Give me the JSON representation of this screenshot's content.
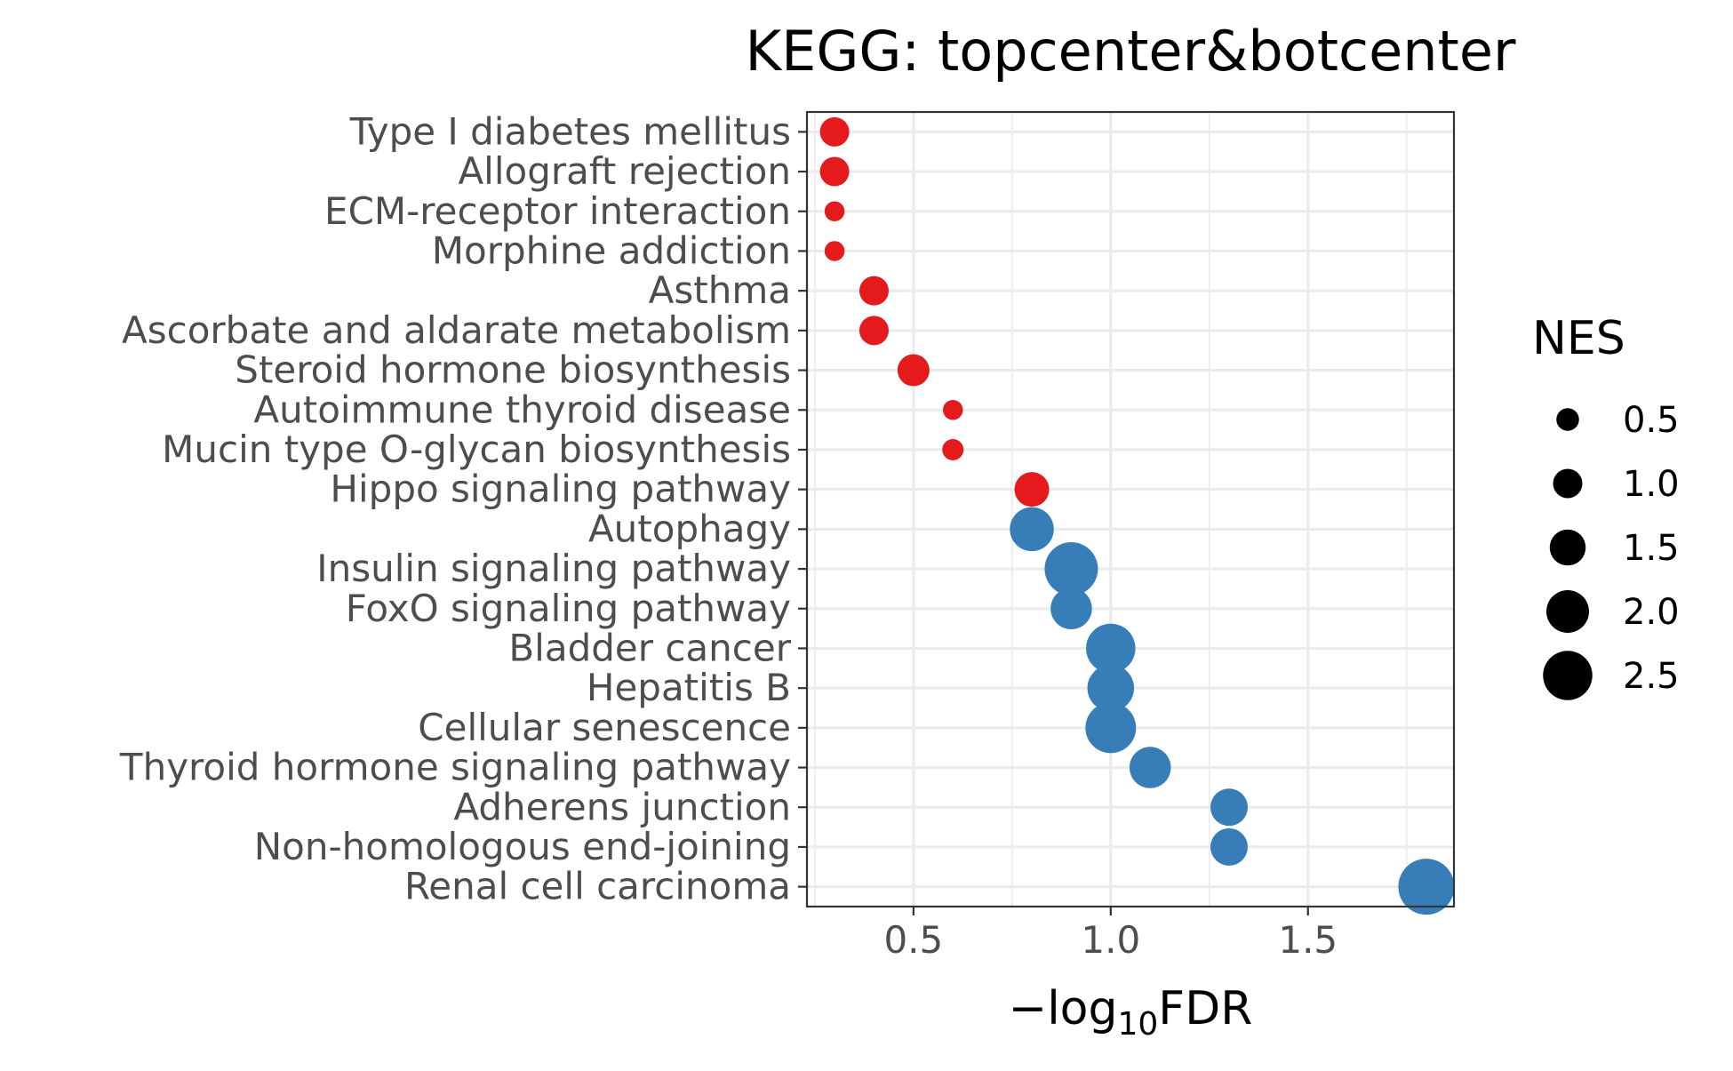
{
  "chart_data": {
    "type": "scatter",
    "title": "KEGG: topcenter&botcenter",
    "xlabel": "−log₁₀FDR",
    "xlabel_parts": {
      "prefix": "−log",
      "subscript": "10",
      "suffix": "FDR"
    },
    "ylabel": "",
    "xlim": [
      0.23,
      1.87
    ],
    "x_ticks": [
      0.5,
      1.0,
      1.5
    ],
    "x_tick_labels": [
      "0.5",
      "1.0",
      "1.5"
    ],
    "grid": true,
    "categories": [
      "Type I diabetes mellitus",
      "Allograft rejection",
      "ECM-receptor interaction",
      "Morphine addiction",
      "Asthma",
      "Ascorbate and aldarate metabolism",
      "Steroid hormone biosynthesis",
      "Autoimmune thyroid disease",
      "Mucin type O-glycan biosynthesis",
      "Hippo signaling pathway",
      "Autophagy",
      "Insulin signaling pathway",
      "FoxO signaling pathway",
      "Bladder cancer",
      "Hepatitis B",
      "Cellular senescence",
      "Thyroid hormone signaling pathway",
      "Adherens junction",
      "Non-homologous end-joining",
      "Renal cell carcinoma"
    ],
    "points": [
      {
        "pathway": "Type I diabetes mellitus",
        "neg_log10_fdr": 0.3,
        "nes": 1.0,
        "color": "#e41a1c"
      },
      {
        "pathway": "Allograft rejection",
        "neg_log10_fdr": 0.3,
        "nes": 1.0,
        "color": "#e41a1c"
      },
      {
        "pathway": "ECM-receptor interaction",
        "neg_log10_fdr": 0.3,
        "nes": 0.3,
        "color": "#e41a1c"
      },
      {
        "pathway": "Morphine addiction",
        "neg_log10_fdr": 0.3,
        "nes": 0.3,
        "color": "#e41a1c"
      },
      {
        "pathway": "Asthma",
        "neg_log10_fdr": 0.4,
        "nes": 1.0,
        "color": "#e41a1c"
      },
      {
        "pathway": "Ascorbate and aldarate metabolism",
        "neg_log10_fdr": 0.4,
        "nes": 1.0,
        "color": "#e41a1c"
      },
      {
        "pathway": "Steroid hormone biosynthesis",
        "neg_log10_fdr": 0.5,
        "nes": 1.2,
        "color": "#e41a1c"
      },
      {
        "pathway": "Autoimmune thyroid disease",
        "neg_log10_fdr": 0.6,
        "nes": 0.3,
        "color": "#e41a1c"
      },
      {
        "pathway": "Mucin type O-glycan biosynthesis",
        "neg_log10_fdr": 0.6,
        "nes": 0.4,
        "color": "#e41a1c"
      },
      {
        "pathway": "Hippo signaling pathway",
        "neg_log10_fdr": 0.8,
        "nes": 1.4,
        "color": "#e41a1c"
      },
      {
        "pathway": "Autophagy",
        "neg_log10_fdr": 0.8,
        "nes": 2.1,
        "color": "#377eb8"
      },
      {
        "pathway": "Insulin signaling pathway",
        "neg_log10_fdr": 0.9,
        "nes": 2.8,
        "color": "#377eb8"
      },
      {
        "pathway": "FoxO signaling pathway",
        "neg_log10_fdr": 0.9,
        "nes": 1.9,
        "color": "#377eb8"
      },
      {
        "pathway": "Bladder cancer",
        "neg_log10_fdr": 1.0,
        "nes": 2.5,
        "color": "#377eb8"
      },
      {
        "pathway": "Hepatitis B",
        "neg_log10_fdr": 1.0,
        "nes": 2.3,
        "color": "#377eb8"
      },
      {
        "pathway": "Cellular senescence",
        "neg_log10_fdr": 1.0,
        "nes": 2.6,
        "color": "#377eb8"
      },
      {
        "pathway": "Thyroid hormone signaling pathway",
        "neg_log10_fdr": 1.1,
        "nes": 1.9,
        "color": "#377eb8"
      },
      {
        "pathway": "Adherens junction",
        "neg_log10_fdr": 1.3,
        "nes": 1.6,
        "color": "#377eb8"
      },
      {
        "pathway": "Non-homologous end-joining",
        "neg_log10_fdr": 1.3,
        "nes": 1.6,
        "color": "#377eb8"
      },
      {
        "pathway": "Renal cell carcinoma",
        "neg_log10_fdr": 1.8,
        "nes": 3.0,
        "color": "#377eb8"
      }
    ],
    "legend": {
      "title": "NES",
      "placement": "right",
      "entries": [
        {
          "label": "0.5",
          "nes": 0.5
        },
        {
          "label": "1.0",
          "nes": 1.0
        },
        {
          "label": "1.5",
          "nes": 1.5
        },
        {
          "label": "2.0",
          "nes": 2.0
        },
        {
          "label": "2.5",
          "nes": 2.5
        }
      ]
    }
  }
}
